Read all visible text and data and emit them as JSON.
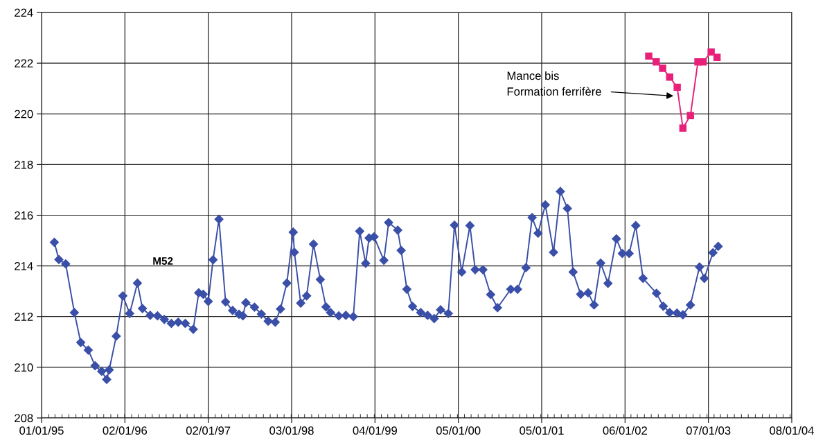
{
  "chart_data": {
    "type": "line",
    "xlim": [
      "1995-01-01",
      "2004-01-08"
    ],
    "ylim": [
      208,
      224
    ],
    "xticks": [
      {
        "value": "1995-01-01",
        "label": "01/01/95"
      },
      {
        "value": "1996-01-02",
        "label": "02/01/96"
      },
      {
        "value": "1997-01-02",
        "label": "02/01/97"
      },
      {
        "value": "1998-01-03",
        "label": "03/01/98"
      },
      {
        "value": "1999-01-04",
        "label": "04/01/99"
      },
      {
        "value": "2000-01-05",
        "label": "05/01/00"
      },
      {
        "value": "2001-01-05",
        "label": "05/01/01"
      },
      {
        "value": "2002-01-06",
        "label": "06/01/02"
      },
      {
        "value": "2003-01-07",
        "label": "07/01/03"
      },
      {
        "value": "2004-01-08",
        "label": "08/01/04"
      }
    ],
    "yticks": [
      208,
      210,
      212,
      214,
      216,
      218,
      220,
      222,
      224
    ],
    "grid": true,
    "line_style": "solid",
    "annotations": [
      {
        "text": "Mance bis\nFormation ferrifère",
        "x": "2002-08-15",
        "y": 220.7
      }
    ],
    "series": [
      {
        "name": "M52",
        "color": "#3a4fa8",
        "marker": "diamond",
        "x": [
          "1995-02-26",
          "1995-03-18",
          "1995-04-17",
          "1995-05-25",
          "1995-06-22",
          "1995-07-25",
          "1995-08-24",
          "1995-09-22",
          "1995-10-14",
          "1995-10-25",
          "1995-11-25",
          "1995-12-24",
          "1996-01-23",
          "1996-02-26",
          "1996-03-19",
          "1996-04-22",
          "1996-05-24",
          "1996-06-23",
          "1996-07-24",
          "1996-08-23",
          "1996-09-23",
          "1996-10-28",
          "1996-11-21",
          "1996-12-11",
          "1997-01-02",
          "1997-01-23",
          "1997-02-18",
          "1997-03-19",
          "1997-04-19",
          "1997-05-17",
          "1997-06-03",
          "1997-06-16",
          "1997-07-24",
          "1997-08-23",
          "1997-09-22",
          "1997-10-23",
          "1997-11-15",
          "1997-12-13",
          "1998-01-10",
          "1998-01-15",
          "1998-02-12",
          "1998-03-10",
          "1998-04-09",
          "1998-05-09",
          "1998-06-03",
          "1998-06-23",
          "1998-07-29",
          "1998-08-29",
          "1998-10-01",
          "1998-10-29",
          "1998-11-24",
          "1998-12-09",
          "1998-12-31",
          "1999-02-12",
          "1999-03-05",
          "1999-04-14",
          "1999-04-29",
          "1999-05-24",
          "1999-06-18",
          "1999-07-24",
          "1999-08-23",
          "1999-09-21",
          "1999-10-19",
          "1999-11-22",
          "1999-12-19",
          "2000-01-20",
          "2000-02-25",
          "2000-03-19",
          "2000-04-22",
          "2000-05-26",
          "2000-06-25",
          "2000-08-22",
          "2000-09-21",
          "2000-10-28",
          "2000-11-24",
          "2000-12-20",
          "2001-01-21",
          "2001-02-26",
          "2001-03-28",
          "2001-04-28",
          "2001-05-23",
          "2001-06-25",
          "2001-07-28",
          "2001-08-23",
          "2001-09-21",
          "2001-10-23",
          "2001-11-29",
          "2001-12-25",
          "2002-01-24",
          "2002-02-22",
          "2002-03-26",
          "2002-05-24",
          "2002-06-23",
          "2002-07-21",
          "2002-08-22",
          "2002-09-17",
          "2002-10-20",
          "2002-11-29",
          "2002-12-20",
          "2003-01-27",
          "2003-02-19"
        ],
        "values": [
          214.93,
          214.25,
          214.08,
          212.16,
          210.98,
          210.68,
          210.06,
          209.84,
          209.52,
          209.9,
          211.23,
          212.82,
          212.12,
          213.32,
          212.32,
          212.05,
          212.03,
          211.89,
          211.73,
          211.78,
          211.73,
          211.5,
          212.94,
          212.88,
          212.6,
          214.24,
          215.84,
          212.58,
          212.24,
          212.09,
          212.03,
          212.55,
          212.37,
          212.1,
          211.82,
          211.78,
          212.3,
          213.32,
          215.33,
          214.54,
          212.53,
          212.82,
          214.86,
          213.46,
          212.38,
          212.16,
          212.03,
          212.05,
          212.0,
          215.37,
          214.1,
          215.1,
          215.15,
          214.22,
          215.71,
          215.41,
          214.61,
          213.08,
          212.4,
          212.16,
          212.05,
          211.92,
          212.27,
          212.12,
          215.61,
          213.76,
          215.59,
          213.85,
          213.85,
          212.87,
          212.35,
          213.08,
          213.08,
          213.93,
          215.91,
          215.29,
          216.41,
          214.54,
          216.94,
          216.27,
          213.76,
          212.88,
          212.94,
          212.46,
          214.11,
          213.31,
          215.07,
          214.49,
          214.49,
          215.59,
          213.51,
          212.92,
          212.41,
          212.16,
          212.14,
          212.07,
          212.46,
          213.96,
          213.51,
          214.52,
          214.77
        ]
      },
      {
        "color": "#e8207a",
        "marker": "square",
        "x": [
          "2002-04-20",
          "2002-05-23",
          "2002-06-20",
          "2002-07-21",
          "2002-08-23",
          "2002-09-17",
          "2002-10-20",
          "2002-11-22",
          "2002-12-15",
          "2003-01-19",
          "2003-02-14"
        ],
        "values": [
          222.28,
          222.05,
          221.8,
          221.45,
          221.05,
          219.44,
          219.93,
          222.05,
          222.05,
          222.44,
          222.23
        ]
      }
    ]
  }
}
